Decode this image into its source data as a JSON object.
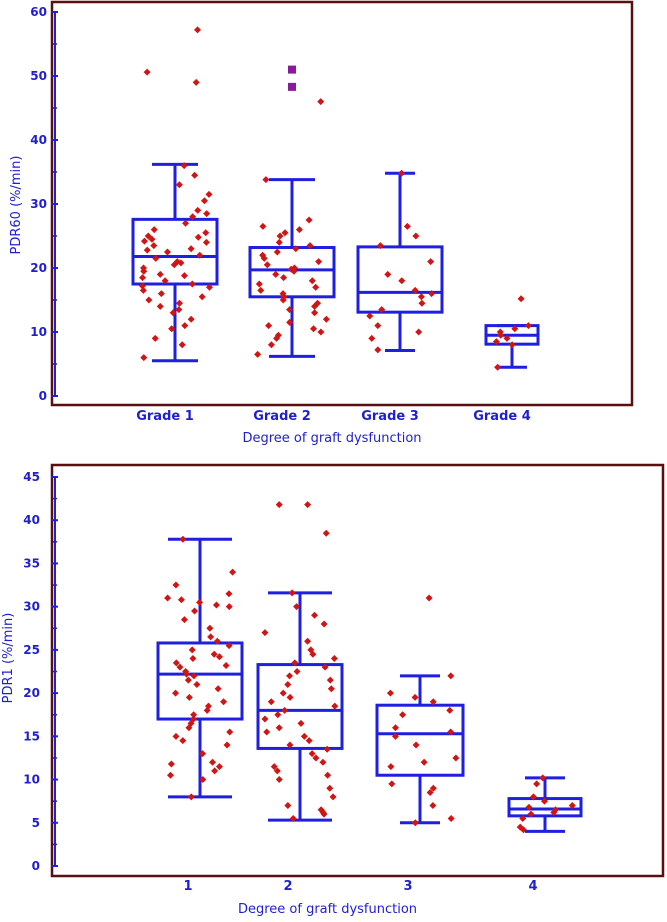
{
  "colors": {
    "frame": "#5a0f0f",
    "box": "#1f1fe0",
    "point": "#d01515",
    "outlier": "#8a1a9a",
    "text": "#1f1fcf"
  },
  "chart_data": [
    {
      "type": "box",
      "title": "",
      "xlabel": "Degree of graft dysfunction",
      "ylabel": "PDR60 (%/min)",
      "ylim": [
        0,
        60
      ],
      "yticks": [
        "0",
        "10",
        "20",
        "30",
        "40",
        "50",
        "60"
      ],
      "categories": [
        "Grade 1",
        "Grade 2",
        "Grade 3",
        "Grade 4"
      ],
      "boxes": [
        {
          "label": "Grade 1",
          "whisker_low": 5.5,
          "q1": 17.5,
          "median": 21.8,
          "q3": 27.6,
          "whisker_high": 36.2
        },
        {
          "label": "Grade 2",
          "whisker_low": 6.2,
          "q1": 15.5,
          "median": 19.7,
          "q3": 23.2,
          "whisker_high": 33.8
        },
        {
          "label": "Grade 3",
          "whisker_low": 7.1,
          "q1": 13.1,
          "median": 16.2,
          "q3": 23.3,
          "whisker_high": 34.8
        },
        {
          "label": "Grade 4",
          "whisker_low": 4.5,
          "q1": 8.1,
          "median": 9.5,
          "q3": 11.0,
          "whisker_high": 11.0
        }
      ],
      "points": [
        [
          57.2,
          50.6,
          49.0,
          36.0,
          34.5,
          33.0,
          31.5,
          30.5,
          29.0,
          28.5,
          28.0,
          27.0,
          26.0,
          25.5,
          25.0,
          24.8,
          24.5,
          24.2,
          24.0,
          23.5,
          23.0,
          22.8,
          22.5,
          22.0,
          21.5,
          21.0,
          20.8,
          20.5,
          20.0,
          19.5,
          19.0,
          18.8,
          18.5,
          18.0,
          17.5,
          17.2,
          17.0,
          16.5,
          16.0,
          15.5,
          15.0,
          14.5,
          14.0,
          13.5,
          13.0,
          12.0,
          11.0,
          10.5,
          9.0,
          8.0,
          6.0
        ],
        [
          46.0,
          33.8,
          27.5,
          26.5,
          26.0,
          25.5,
          25.0,
          24.0,
          23.5,
          23.0,
          22.5,
          22.0,
          21.5,
          21.0,
          20.5,
          20.0,
          19.8,
          19.5,
          19.0,
          18.5,
          18.0,
          17.5,
          17.0,
          16.5,
          16.0,
          15.5,
          15.0,
          14.5,
          14.0,
          13.5,
          13.0,
          12.0,
          11.5,
          11.0,
          10.5,
          10.0,
          9.5,
          9.0,
          8.0,
          6.5
        ],
        [
          34.8,
          26.5,
          25.0,
          23.5,
          21.0,
          19.0,
          18.0,
          16.5,
          16.0,
          15.5,
          14.5,
          13.5,
          12.5,
          11.0,
          10.0,
          9.0,
          7.2
        ],
        [
          15.2,
          11.0,
          10.5,
          10.0,
          9.5,
          9.0,
          8.5,
          8.0,
          4.5
        ]
      ],
      "outliers": [
        {
          "category": "Grade 2",
          "values": [
            51.0,
            48.3
          ]
        }
      ]
    },
    {
      "type": "box",
      "title": "",
      "xlabel": "Degree of graft dysfunction",
      "ylabel": "PDR1 (%/min)",
      "ylim": [
        0,
        45
      ],
      "yticks": [
        "0",
        "5",
        "10",
        "15",
        "20",
        "25",
        "30",
        "35",
        "40",
        "45"
      ],
      "categories": [
        "1",
        "2",
        "3",
        "4"
      ],
      "boxes": [
        {
          "label": "1",
          "whisker_low": 8.0,
          "q1": 17.0,
          "median": 22.2,
          "q3": 25.8,
          "whisker_high": 37.8
        },
        {
          "label": "2",
          "whisker_low": 5.3,
          "q1": 13.6,
          "median": 18.0,
          "q3": 23.3,
          "whisker_high": 31.6
        },
        {
          "label": "3",
          "whisker_low": 5.0,
          "q1": 10.5,
          "median": 15.3,
          "q3": 18.6,
          "whisker_high": 22.0
        },
        {
          "label": "4",
          "whisker_low": 4.0,
          "q1": 5.8,
          "median": 6.6,
          "q3": 7.8,
          "whisker_high": 10.2
        }
      ],
      "points": [
        [
          37.8,
          34.0,
          32.5,
          31.5,
          31.0,
          30.8,
          30.5,
          30.2,
          30.0,
          29.5,
          28.5,
          27.5,
          26.5,
          26.0,
          25.5,
          25.0,
          24.5,
          24.2,
          24.0,
          23.5,
          23.2,
          23.0,
          22.5,
          22.2,
          22.0,
          21.5,
          21.0,
          20.5,
          20.0,
          19.5,
          19.0,
          18.5,
          18.0,
          17.5,
          17.0,
          16.5,
          16.0,
          15.5,
          15.0,
          14.5,
          14.0,
          13.0,
          12.0,
          11.8,
          11.5,
          11.0,
          10.5,
          10.0,
          8.0
        ],
        [
          41.8,
          41.8,
          38.5,
          31.6,
          30.0,
          29.0,
          28.0,
          27.0,
          26.0,
          25.0,
          24.5,
          24.0,
          23.5,
          23.0,
          22.5,
          22.0,
          21.5,
          21.0,
          20.5,
          20.0,
          19.5,
          19.0,
          18.5,
          18.0,
          17.5,
          17.0,
          16.5,
          16.0,
          15.5,
          15.0,
          14.5,
          14.0,
          13.5,
          13.0,
          12.5,
          12.0,
          11.5,
          11.0,
          10.5,
          10.0,
          9.0,
          8.0,
          7.0,
          6.5,
          6.2,
          6.0,
          5.5
        ],
        [
          31.0,
          22.0,
          20.0,
          19.5,
          19.0,
          18.0,
          17.5,
          16.0,
          15.5,
          15.0,
          14.0,
          12.5,
          12.0,
          11.5,
          9.5,
          9.0,
          8.5,
          7.0,
          5.5,
          5.0
        ],
        [
          10.2,
          9.5,
          8.0,
          7.5,
          7.0,
          6.8,
          6.5,
          6.2,
          6.0,
          5.5,
          4.5,
          4.2
        ]
      ],
      "outliers": []
    }
  ]
}
